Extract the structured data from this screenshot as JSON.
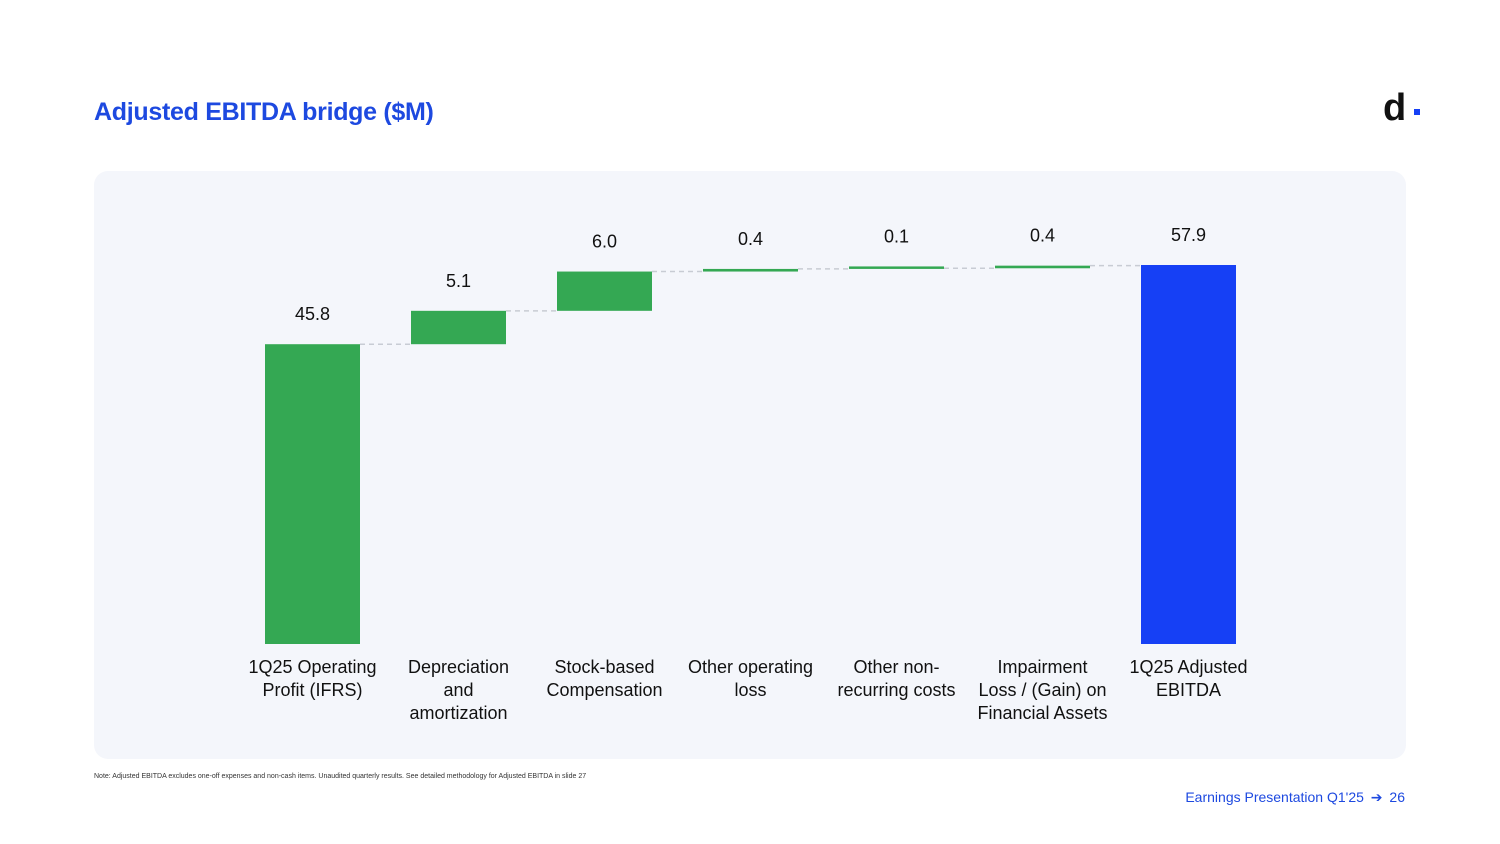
{
  "header": {
    "title": "Adjusted EBITDA bridge ($M)",
    "logo_text": "d"
  },
  "chart_data": {
    "type": "bar",
    "subtype": "waterfall",
    "title": "Adjusted EBITDA bridge ($M)",
    "categories": [
      "1Q25 Operating Profit (IFRS)",
      "Depreciation and amortization",
      "Stock-based Compensation",
      "Other operating loss",
      "Other non-recurring costs",
      "Impairment Loss / (Gain) on Financial Assets",
      "1Q25 Adjusted EBITDA"
    ],
    "category_lines": [
      [
        "1Q25 Operating",
        "Profit (IFRS)"
      ],
      [
        "Depreciation",
        "and",
        "amortization"
      ],
      [
        "Stock-based",
        "Compensation"
      ],
      [
        "Other operating",
        "loss"
      ],
      [
        "Other non-",
        "recurring costs"
      ],
      [
        "Impairment",
        "Loss / (Gain) on",
        "Financial Assets"
      ],
      [
        "1Q25 Adjusted",
        "EBITDA"
      ]
    ],
    "values": [
      45.8,
      5.1,
      6.0,
      0.4,
      0.1,
      0.4,
      57.9
    ],
    "labels": [
      "45.8",
      "5.1",
      "6.0",
      "0.4",
      "0.1",
      "0.4",
      "57.9"
    ],
    "kinds": [
      "total",
      "delta",
      "delta",
      "delta",
      "delta",
      "delta",
      "total"
    ],
    "ylim": [
      0,
      57.9
    ],
    "grid": false,
    "colors": {
      "positive": "#34a853",
      "total": "#1640f5",
      "connector": "#c8ccd4"
    }
  },
  "footnote": "Note: Adjusted EBITDA excludes one-off expenses and non-cash items. Unaudited quarterly results. See detailed methodology for Adjusted EBITDA in slide 27",
  "footer": {
    "text": "Earnings Presentation Q1'25",
    "arrow": "➔",
    "page": "26"
  }
}
